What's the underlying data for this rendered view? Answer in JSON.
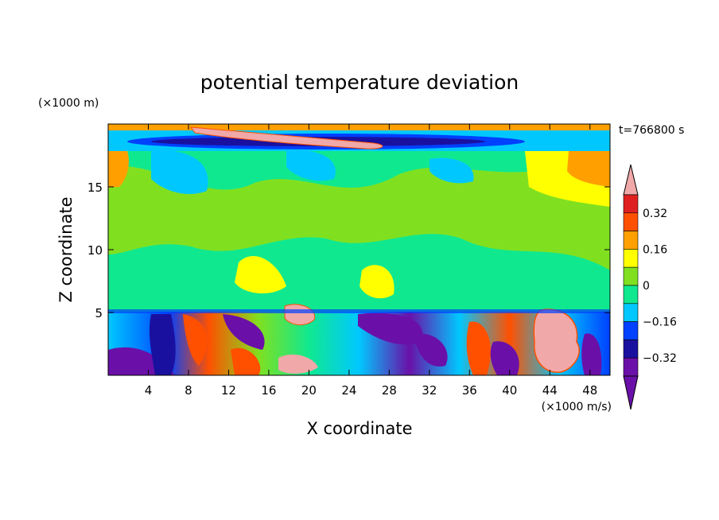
{
  "chart_data": {
    "type": "heatmap",
    "title": "potential temperature deviation",
    "xlabel": "X coordinate",
    "ylabel": "Z coordinate",
    "x_unit": "(×1000 m/s)",
    "y_unit": "(×1000 m)",
    "time_label": "t=766800 s",
    "x_ticks": [
      "4",
      "8",
      "12",
      "16",
      "20",
      "24",
      "28",
      "32",
      "36",
      "40",
      "44",
      "48"
    ],
    "y_ticks": [
      "5",
      "10",
      "15"
    ],
    "xlim": [
      0,
      50
    ],
    "ylim": [
      0,
      20
    ],
    "colorbar": {
      "levels": [
        -0.4,
        -0.32,
        -0.24,
        -0.16,
        -0.08,
        0,
        0.08,
        0.16,
        0.24,
        0.32,
        0.4
      ],
      "tick_labels": [
        "0.32",
        "0.16",
        "0",
        "−0.16",
        "−0.32"
      ],
      "colors": [
        "#6a10a8",
        "#1a10a0",
        "#0040ff",
        "#00c8ff",
        "#10e890",
        "#80e020",
        "#ffff00",
        "#ffa000",
        "#ff5000",
        "#e02020"
      ],
      "above_color": "#f0a8a8",
      "below_color": "#6a10a8"
    },
    "regions": [
      {
        "x": [
          0,
          50
        ],
        "y": [
          0,
          5.2
        ],
        "value": -0.12
      },
      {
        "x": [
          0,
          50
        ],
        "y": [
          5.2,
          18.2
        ],
        "value": 0.04
      },
      {
        "x": [
          8,
          28
        ],
        "y": [
          18.3,
          19.7
        ],
        "value": 0.45
      },
      {
        "x": [
          43,
          47
        ],
        "y": [
          0.5,
          5.2
        ],
        "value": 0.45
      }
    ]
  }
}
